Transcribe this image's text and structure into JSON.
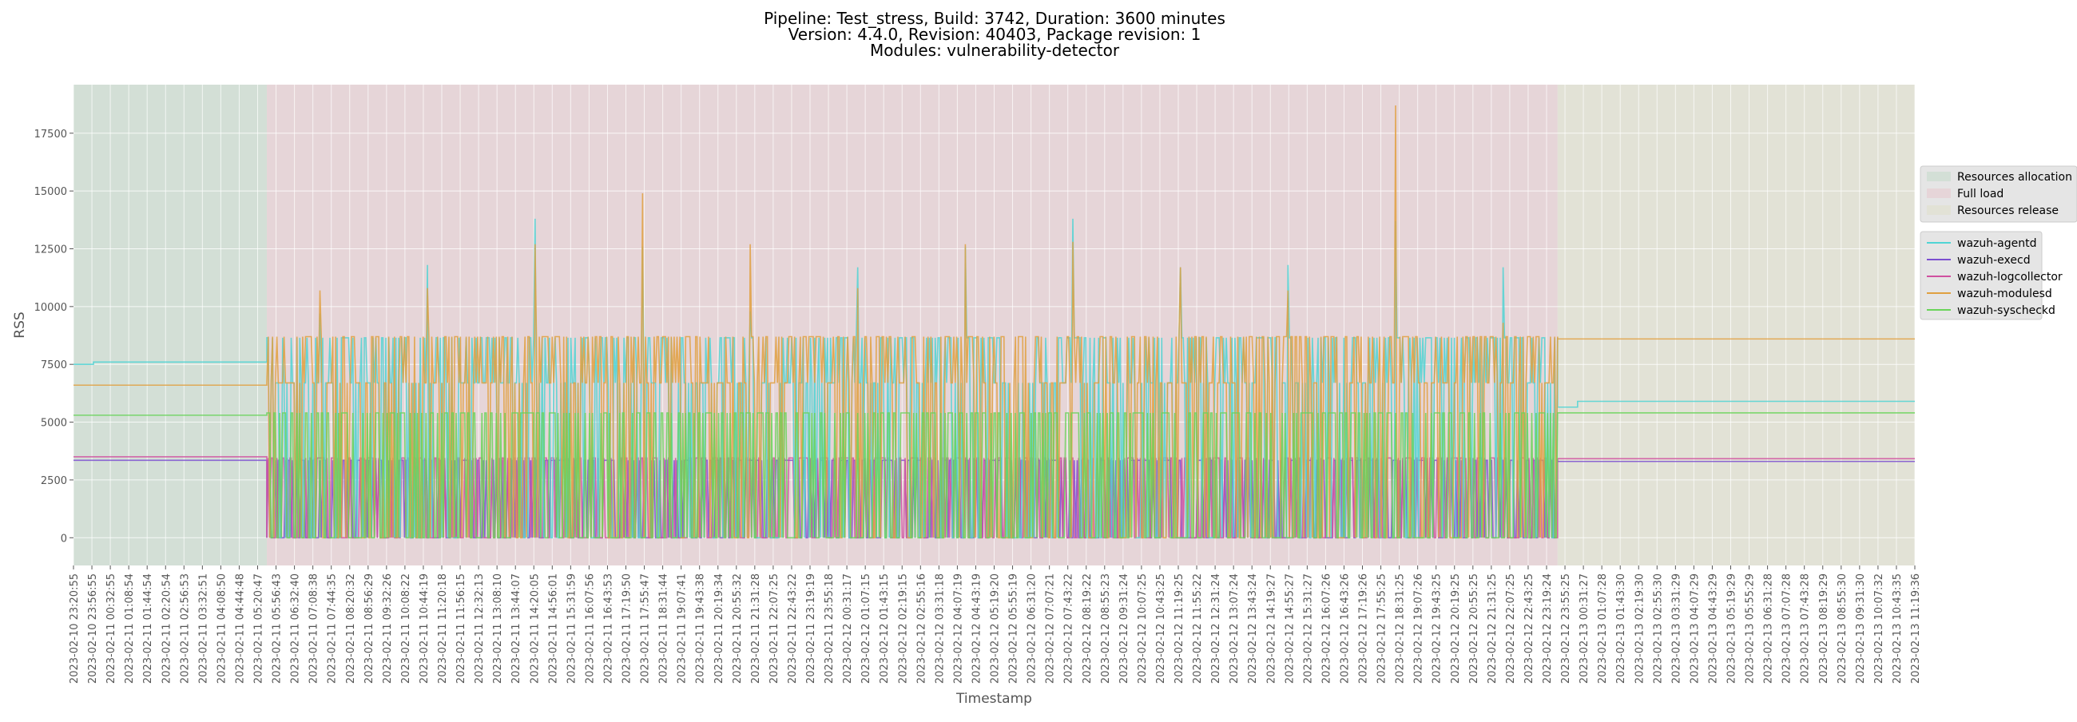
{
  "chart_data": {
    "type": "line",
    "title_lines": [
      "Pipeline: Test_stress, Build: 3742, Duration: 3600 minutes",
      "Version: 4.4.0, Revision: 40403, Package revision: 1",
      "Modules: vulnerability-detector"
    ],
    "xlabel": "Timestamp",
    "ylabel": "RSS",
    "ylim": [
      -1200,
      19600
    ],
    "yticks": [
      0,
      2500,
      5000,
      7500,
      10000,
      12500,
      15000,
      17500
    ],
    "xticks": [
      "2023-02-10 23:20:55",
      "2023-02-10 23:56:55",
      "2023-02-11 00:32:55",
      "2023-02-11 01:08:54",
      "2023-02-11 01:44:54",
      "2023-02-11 02:20:54",
      "2023-02-11 02:56:53",
      "2023-02-11 03:32:51",
      "2023-02-11 04:08:50",
      "2023-02-11 04:44:48",
      "2023-02-11 05:20:47",
      "2023-02-11 05:56:43",
      "2023-02-11 06:32:40",
      "2023-02-11 07:08:38",
      "2023-02-11 07:44:35",
      "2023-02-11 08:20:32",
      "2023-02-11 08:56:29",
      "2023-02-11 09:32:26",
      "2023-02-11 10:08:22",
      "2023-02-11 10:44:19",
      "2023-02-11 11:20:18",
      "2023-02-11 11:56:15",
      "2023-02-11 12:32:13",
      "2023-02-11 13:08:10",
      "2023-02-11 13:44:07",
      "2023-02-11 14:20:05",
      "2023-02-11 14:56:01",
      "2023-02-11 15:31:59",
      "2023-02-11 16:07:56",
      "2023-02-11 16:43:53",
      "2023-02-11 17:19:50",
      "2023-02-11 17:55:47",
      "2023-02-11 18:31:44",
      "2023-02-11 19:07:41",
      "2023-02-11 19:43:38",
      "2023-02-11 20:19:34",
      "2023-02-11 20:55:32",
      "2023-02-11 21:31:28",
      "2023-02-11 22:07:25",
      "2023-02-11 22:43:22",
      "2023-02-11 23:19:19",
      "2023-02-11 23:55:18",
      "2023-02-12 00:31:17",
      "2023-02-12 01:07:15",
      "2023-02-12 01:43:15",
      "2023-02-12 02:19:15",
      "2023-02-12 02:55:16",
      "2023-02-12 03:31:18",
      "2023-02-12 04:07:19",
      "2023-02-12 04:43:19",
      "2023-02-12 05:19:20",
      "2023-02-12 05:55:19",
      "2023-02-12 06:31:20",
      "2023-02-12 07:07:21",
      "2023-02-12 07:43:22",
      "2023-02-12 08:19:22",
      "2023-02-12 08:55:23",
      "2023-02-12 09:31:24",
      "2023-02-12 10:07:25",
      "2023-02-12 10:43:25",
      "2023-02-12 11:19:25",
      "2023-02-12 11:55:22",
      "2023-02-12 12:31:24",
      "2023-02-12 13:07:24",
      "2023-02-12 13:43:24",
      "2023-02-12 14:19:27",
      "2023-02-12 14:55:27",
      "2023-02-12 15:31:27",
      "2023-02-12 16:07:26",
      "2023-02-12 16:43:26",
      "2023-02-12 17:19:26",
      "2023-02-12 17:55:25",
      "2023-02-12 18:31:25",
      "2023-02-12 19:07:26",
      "2023-02-12 19:43:25",
      "2023-02-12 20:19:25",
      "2023-02-12 20:55:25",
      "2023-02-12 21:31:25",
      "2023-02-12 22:07:25",
      "2023-02-12 22:43:25",
      "2023-02-12 23:19:24",
      "2023-02-12 23:55:25",
      "2023-02-13 00:31:27",
      "2023-02-13 01:07:28",
      "2023-02-13 01:43:30",
      "2023-02-13 02:19:30",
      "2023-02-13 02:55:30",
      "2023-02-13 03:31:29",
      "2023-02-13 04:07:29",
      "2023-02-13 04:43:29",
      "2023-02-13 05:19:29",
      "2023-02-13 05:55:29",
      "2023-02-13 06:31:28",
      "2023-02-13 07:07:28",
      "2023-02-13 07:43:28",
      "2023-02-13 08:19:29",
      "2023-02-13 08:55:30",
      "2023-02-13 09:31:30",
      "2023-02-13 10:07:32",
      "2023-02-13 10:43:35",
      "2023-02-13 11:19:36"
    ],
    "phases": [
      {
        "name": "Resources allocation",
        "start_index": 0,
        "end_index": 10.5,
        "color": "#d3dfd6"
      },
      {
        "name": "Full load",
        "start_index": 10.5,
        "end_index": 80.6,
        "color": "#e6d5d8"
      },
      {
        "name": "Resources release",
        "start_index": 80.6,
        "end_index": 100,
        "color": "#e2e2d6"
      }
    ],
    "series": [
      {
        "name": "wazuh-agentd",
        "color": "#4fd4d4",
        "idle_start": 7600,
        "load_base": 6700,
        "load_high": 8650,
        "load_low": 0,
        "spikes": [
          9700,
          11800,
          13800,
          12600,
          9800,
          11700,
          12600,
          13800,
          11700,
          11800,
          13700,
          11700
        ],
        "idle_end": 5900
      },
      {
        "name": "wazuh-execd",
        "color": "#7b4fd0",
        "idle_start": 3350,
        "load_base": 3350,
        "load_high": 3350,
        "load_low": 0,
        "spikes": [],
        "idle_end": 3300
      },
      {
        "name": "wazuh-logcollector",
        "color": "#d050a0",
        "idle_start": 3500,
        "load_base": 3450,
        "load_high": 3450,
        "load_low": 0,
        "spikes": [],
        "idle_end": 3420
      },
      {
        "name": "wazuh-modulesd",
        "color": "#e0a040",
        "idle_start": 6600,
        "load_base": 6700,
        "load_high": 8700,
        "load_low": 0,
        "spikes": [
          10700,
          10800,
          12700,
          14900,
          12700,
          10800,
          12700,
          12800,
          11700,
          10700,
          18700,
          9300
        ],
        "idle_end": 8600
      },
      {
        "name": "wazuh-syscheckd",
        "color": "#6ad45a",
        "idle_start": 5300,
        "load_base": 5400,
        "load_high": 5400,
        "load_low": 0,
        "spikes": [],
        "idle_end": 5400
      }
    ],
    "grid": true,
    "legend_position": "right"
  }
}
